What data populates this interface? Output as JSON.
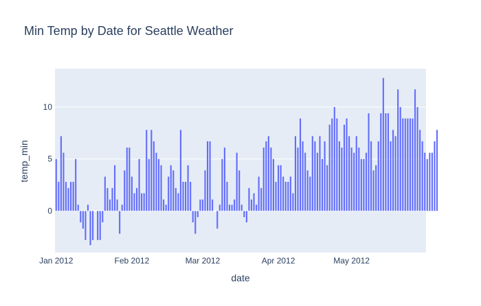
{
  "chart_data": {
    "type": "bar",
    "title": "Min Temp by Date for Seattle Weather",
    "xlabel": "date",
    "ylabel": "temp_min",
    "x_start": "2012-01-01",
    "x_end": "2012-05-31",
    "x_tick_labels": [
      "Jan 2012",
      "Feb 2012",
      "Mar 2012",
      "Apr 2012",
      "May 2012"
    ],
    "x_tick_dates": [
      "2012-01-01",
      "2012-02-01",
      "2012-03-01",
      "2012-04-01",
      "2012-05-01"
    ],
    "y_ticks": [
      0,
      5,
      10
    ],
    "ylim": [
      -4,
      13.7
    ],
    "grid": true,
    "bar_color": "#636efa",
    "plot_bg_color": "#e5ecf6",
    "values": [
      5.0,
      2.8,
      7.2,
      5.6,
      2.8,
      2.2,
      2.8,
      2.8,
      5.0,
      0.6,
      -1.1,
      -1.7,
      -2.8,
      0.6,
      -3.3,
      -2.8,
      0.0,
      -2.8,
      -2.8,
      -1.1,
      3.3,
      2.2,
      1.1,
      2.2,
      4.4,
      1.1,
      -2.2,
      0.6,
      3.9,
      6.1,
      6.1,
      3.3,
      1.7,
      2.2,
      5.0,
      1.7,
      1.7,
      7.8,
      5.0,
      7.8,
      6.7,
      5.6,
      5.0,
      4.4,
      1.1,
      0.6,
      3.3,
      4.4,
      3.9,
      2.2,
      1.7,
      7.8,
      2.8,
      2.8,
      4.4,
      2.8,
      -1.1,
      -2.2,
      -0.6,
      1.1,
      1.1,
      3.9,
      6.7,
      6.7,
      1.1,
      0.0,
      -1.7,
      0.6,
      5.0,
      6.1,
      2.8,
      0.6,
      0.6,
      1.1,
      5.6,
      3.9,
      0.6,
      -0.6,
      -1.1,
      2.2,
      1.1,
      1.7,
      0.6,
      3.3,
      2.2,
      6.1,
      6.7,
      7.2,
      6.1,
      5.0,
      2.8,
      4.4,
      4.4,
      3.3,
      2.8,
      2.8,
      3.3,
      1.7,
      7.2,
      6.1,
      8.9,
      6.7,
      5.6,
      3.9,
      3.3,
      7.2,
      6.7,
      5.6,
      7.2,
      5.0,
      6.7,
      4.4,
      8.3,
      8.9,
      10.0,
      8.9,
      6.7,
      6.1,
      8.3,
      8.9,
      7.2,
      6.1,
      5.6,
      7.2,
      6.1,
      5.0,
      5.0,
      5.6,
      9.4,
      6.7,
      3.9,
      4.4,
      6.7,
      9.4,
      12.8,
      9.4,
      9.4,
      6.7,
      7.8,
      7.2,
      11.7,
      10.0,
      8.9,
      8.9,
      8.9,
      8.9,
      8.9,
      11.7,
      10.0,
      7.8,
      6.7,
      5.6,
      5.0,
      5.6,
      5.6,
      6.7,
      7.8
    ]
  }
}
